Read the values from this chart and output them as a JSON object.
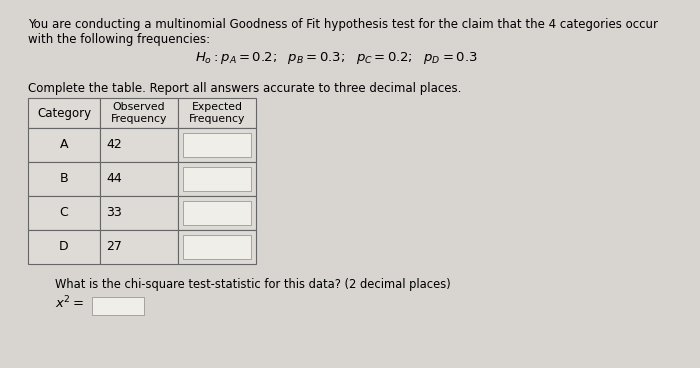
{
  "bg_color": "#d8d4d0",
  "text_color": "#000000",
  "title_line1": "You are conducting a multinomial Goodness of Fit hypothesis test for the claim that the 4 categories occur",
  "title_line2": "with the following frequencies:",
  "col_headers": [
    "Category",
    "Observed\nFrequency",
    "Expected\nFrequency"
  ],
  "categories": [
    "A",
    "B",
    "C",
    "D"
  ],
  "observed": [
    42,
    44,
    33,
    27
  ],
  "chi_square_label": "What is the chi-square test-statistic for this data? (2 decimal places)",
  "cell_bg": "#dedad6",
  "input_bg": "#f0eee8",
  "border_color": "#666666"
}
